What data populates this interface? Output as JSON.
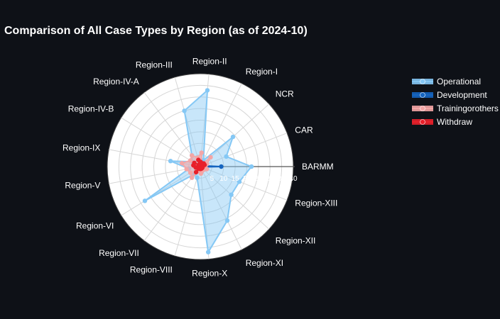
{
  "chart_data": {
    "type": "radar",
    "title": "Comparison of All Case Types by Region (as of 2024-10)",
    "categories": [
      "BARMM",
      "CAR",
      "NCR",
      "Region-I",
      "Region-II",
      "Region-III",
      "Region-IV-A",
      "Region-IV-B",
      "Region-IX",
      "Region-V",
      "Region-VI",
      "Region-VII",
      "Region-VIII",
      "Region-X",
      "Region-XI",
      "Region-XII",
      "Region-XIII"
    ],
    "radial_range": [
      0,
      40
    ],
    "radial_ticks": [
      "0",
      "5",
      "10",
      "15",
      "20",
      "25",
      "30",
      "35",
      "40"
    ],
    "series": [
      {
        "name": "Operational",
        "values": [
          22,
          12,
          19,
          3,
          33,
          25,
          6,
          4,
          13,
          5,
          28,
          4,
          5,
          37,
          26,
          18,
          18
        ],
        "color": "#85c8f5"
      },
      {
        "name": "Development",
        "values": [
          9,
          1,
          0.5,
          0.5,
          0.5,
          0.5,
          0.5,
          0.5,
          0.5,
          0.5,
          0.5,
          0.5,
          0.5,
          0.5,
          0.5,
          0.5,
          0.5
        ],
        "color": "#1565c0"
      },
      {
        "name": "Trainingorothers",
        "values": [
          2,
          3,
          6,
          1,
          6,
          4,
          6,
          5,
          8,
          6,
          5,
          6,
          2,
          3,
          2,
          2,
          3
        ],
        "color": "#f4a6a6"
      },
      {
        "name": "Withdraw",
        "values": [
          1,
          2,
          2,
          1,
          2,
          3,
          1,
          3,
          3,
          2,
          1,
          3,
          1,
          1,
          1,
          1,
          1
        ],
        "color": "#e8202a"
      }
    ],
    "grid": true,
    "legend_position": "right"
  }
}
